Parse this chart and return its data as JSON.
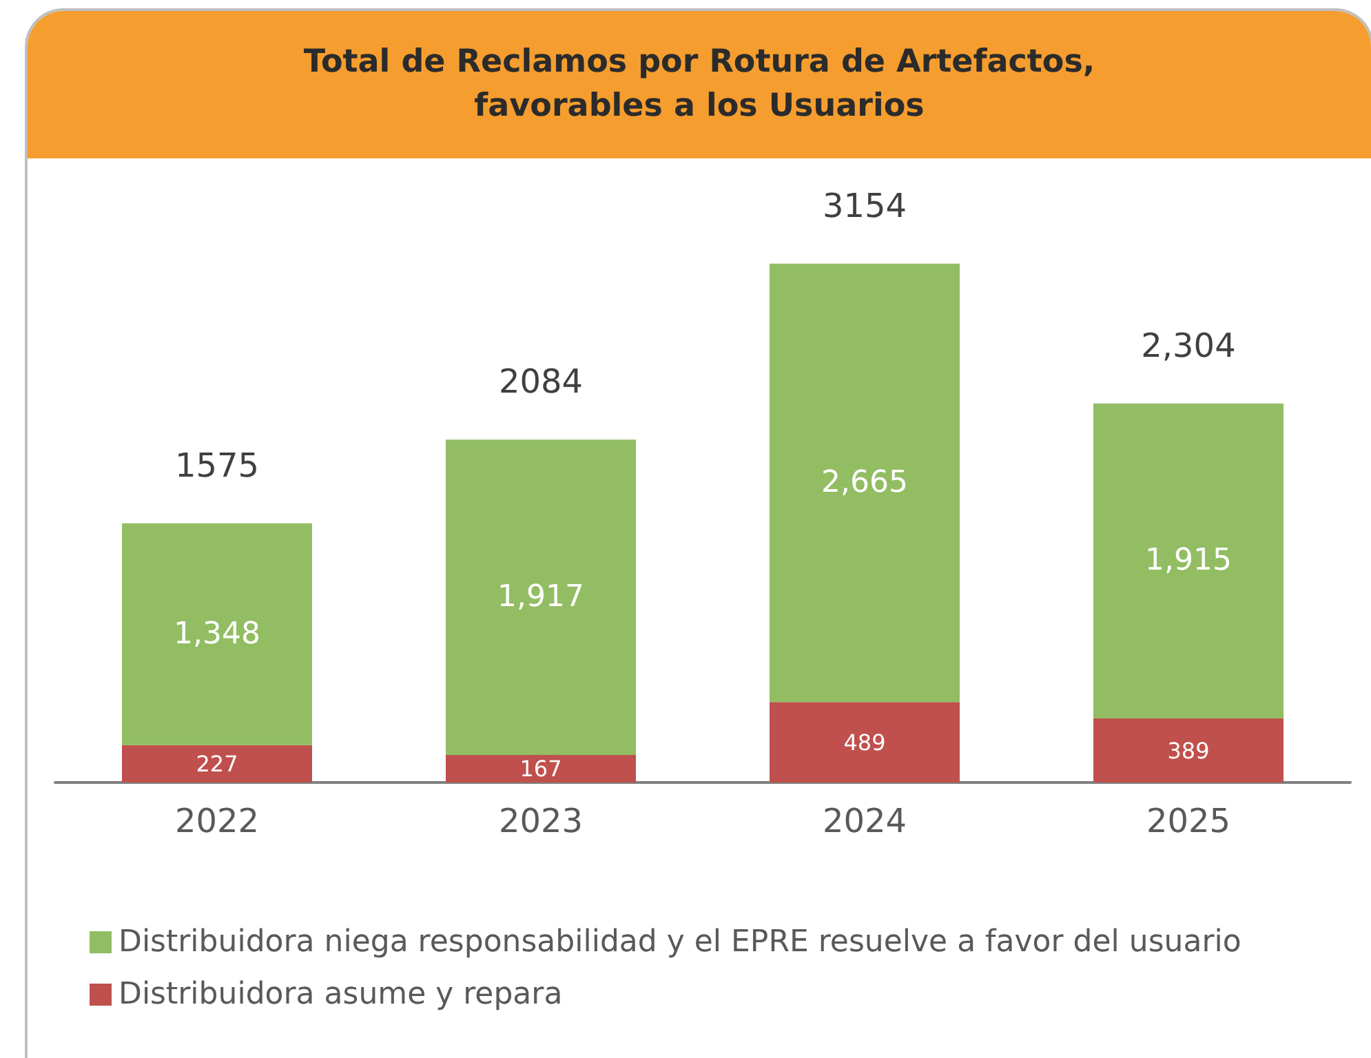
{
  "chart_data": {
    "type": "bar",
    "title": "Total de Reclamos por Rotura de Artefactos, favorables a los Usuarios",
    "categories": [
      "2022",
      "2023",
      "2024",
      "2025"
    ],
    "stacked": true,
    "totals": [
      "1575",
      "2084",
      "3154",
      "2,304"
    ],
    "tick_labels": "x",
    "legend": "bottom",
    "series": [
      {
        "name": "Distribuidora asume y repara",
        "color": "#c0504d",
        "values": [
          227,
          167,
          489,
          389
        ],
        "value_labels": [
          "227",
          "167",
          "489",
          "389"
        ]
      },
      {
        "name": "Distribuidora niega responsabilidad y el EPRE resuelve a favor del usuario",
        "color": "#92bd63",
        "values": [
          1348,
          1917,
          2665,
          1915
        ],
        "value_labels": [
          "1,348",
          "1,917",
          "2,665",
          "1,915"
        ]
      }
    ]
  }
}
